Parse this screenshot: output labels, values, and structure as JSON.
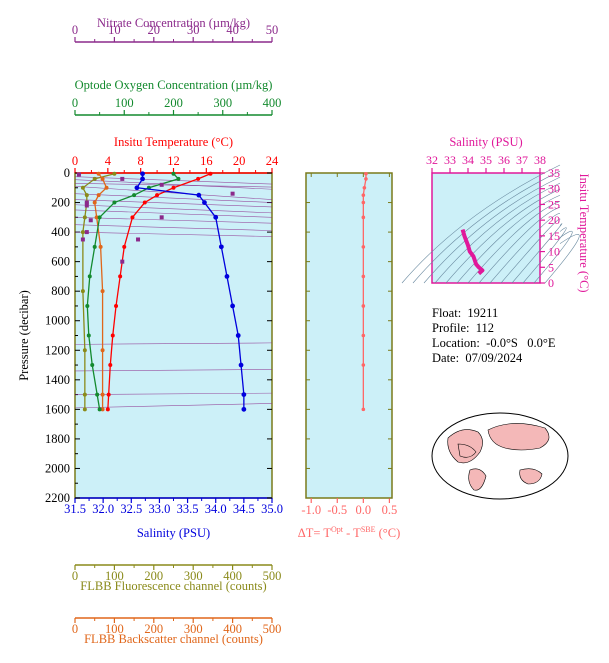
{
  "colors": {
    "nitrate": "#8b2a8b",
    "oxygen": "#138a2e",
    "temperature": "#ff0000",
    "salinity": "#0000dd",
    "fluorescence": "#8a8a1a",
    "backscatter": "#e0661a",
    "diff": "#ff6666",
    "ts": "#e0189a",
    "panel_bg": "#ccf0f8",
    "plot_frame": "#7a7a1a"
  },
  "axes": {
    "nitrate": {
      "label": "Nitrate Concentration (µm/kg)",
      "ticks": [
        "0",
        "10",
        "20",
        "30",
        "40",
        "50"
      ],
      "range": [
        0,
        50
      ]
    },
    "oxygen": {
      "label": "Optode Oxygen Concentration (µm/kg)",
      "ticks": [
        "0",
        "100",
        "200",
        "300",
        "400"
      ],
      "range": [
        0,
        400
      ]
    },
    "temperature": {
      "label": "Insitu Temperature (°C)",
      "ticks": [
        "0",
        "4",
        "8",
        "12",
        "16",
        "20",
        "24"
      ],
      "range": [
        0,
        24
      ]
    },
    "pressure": {
      "label": "Pressure (decibar)",
      "ticks": [
        "0",
        "200",
        "400",
        "600",
        "800",
        "1000",
        "1200",
        "1400",
        "1600",
        "1800",
        "2000",
        "2200"
      ],
      "range": [
        0,
        2200
      ]
    },
    "salinity": {
      "label": "Salinity (PSU)",
      "ticks": [
        "31.5",
        "32.0",
        "32.5",
        "33.0",
        "33.5",
        "34.0",
        "34.5",
        "35.0"
      ],
      "range": [
        31.5,
        35.0
      ]
    },
    "fluorescence": {
      "label": "FLBB Fluorescence channel (counts)",
      "ticks": [
        "0",
        "100",
        "200",
        "300",
        "400",
        "500"
      ],
      "range": [
        0,
        500
      ]
    },
    "backscatter": {
      "label": "FLBB Backscatter channel (counts)",
      "ticks": [
        "0",
        "100",
        "200",
        "300",
        "400",
        "500"
      ],
      "range": [
        0,
        500
      ]
    },
    "diff": {
      "label_prefix": "ΔT= T",
      "sup1": "Opt",
      "label_mid": " - T",
      "sup2": "SBE",
      "label_suffix": " (°C)",
      "ticks": [
        "-1.0",
        "-0.5",
        "0.0",
        "0.5"
      ],
      "range": [
        -1.1,
        0.55
      ]
    },
    "ts_salinity": {
      "label": "Salinity (PSU)",
      "ticks": [
        "32",
        "33",
        "34",
        "35",
        "36",
        "37",
        "38"
      ],
      "range": [
        32,
        38
      ]
    },
    "ts_temperature": {
      "label": "Insitu Temperature (°C)",
      "ticks": [
        "0",
        "5",
        "10",
        "15",
        "20",
        "25",
        "30",
        "35"
      ],
      "range": [
        0,
        35
      ]
    }
  },
  "info": {
    "float": "Float:  19211",
    "profile": "Profile:  112",
    "location": "Location:  -0.0°S   0.0°E",
    "date": "Date:  07/09/2024"
  },
  "chart_data": {
    "type": "line",
    "title": "",
    "pressure_axis_reversed": true,
    "series": [
      {
        "name": "Salinity (PSU)",
        "x": [
          32.7,
          32.7,
          32.6,
          33.7,
          33.8,
          34.0,
          34.1,
          34.2,
          34.3,
          34.4,
          34.45,
          34.5,
          34.5
        ],
        "y": [
          5,
          40,
          100,
          150,
          200,
          300,
          500,
          700,
          900,
          1100,
          1300,
          1500,
          1600
        ]
      },
      {
        "name": "Insitu Temperature (°C)",
        "x": [
          16.5,
          15.0,
          12.0,
          10.0,
          8.5,
          7.0,
          6.0,
          5.5,
          5.0,
          4.6,
          4.3,
          4.1,
          4.0
        ],
        "y": [
          5,
          40,
          100,
          150,
          200,
          300,
          500,
          700,
          900,
          1100,
          1300,
          1500,
          1600
        ]
      },
      {
        "name": "Optode Oxygen Concentration (µm/kg)",
        "x": [
          200,
          210,
          150,
          120,
          80,
          50,
          40,
          30,
          25,
          28,
          35,
          45,
          50
        ],
        "y": [
          5,
          40,
          100,
          150,
          200,
          300,
          500,
          700,
          900,
          1100,
          1300,
          1500,
          1600
        ]
      },
      {
        "name": "Nitrate Concentration (µm/kg)",
        "x": [
          1,
          12,
          22,
          40,
          3,
          4,
          3,
          2,
          3,
          22,
          12,
          16
        ],
        "y": [
          10,
          40,
          80,
          140,
          220,
          320,
          400,
          450,
          200,
          300,
          600,
          450
        ]
      },
      {
        "name": "FLBB Fluorescence channel (counts)",
        "x": [
          100,
          50,
          20,
          30,
          30,
          25,
          20,
          20,
          25,
          25,
          25
        ],
        "y": [
          5,
          40,
          100,
          150,
          200,
          300,
          400,
          800,
          1200,
          1500,
          1600
        ]
      },
      {
        "name": "FLBB Backscatter channel (counts)",
        "x": [
          60,
          70,
          80,
          60,
          50,
          55,
          65,
          70,
          70,
          70,
          70
        ],
        "y": [
          5,
          40,
          100,
          150,
          200,
          300,
          500,
          800,
          1200,
          1500,
          1600
        ]
      },
      {
        "name": "ΔT",
        "x": [
          0.05,
          0.05,
          0.02,
          0.0,
          0.0,
          0.0,
          0.0,
          0.0,
          0.0,
          0.0,
          0.0,
          0.0
        ],
        "y": [
          5,
          40,
          100,
          150,
          200,
          300,
          500,
          700,
          900,
          1100,
          1300,
          1600
        ]
      },
      {
        "name": "T-S",
        "x": [
          33.7,
          33.8,
          34.0,
          34.1,
          34.3,
          34.45,
          34.6,
          34.8,
          34.6
        ],
        "y": [
          17,
          15,
          12,
          10,
          8.5,
          6,
          5,
          4,
          3
        ]
      }
    ]
  }
}
